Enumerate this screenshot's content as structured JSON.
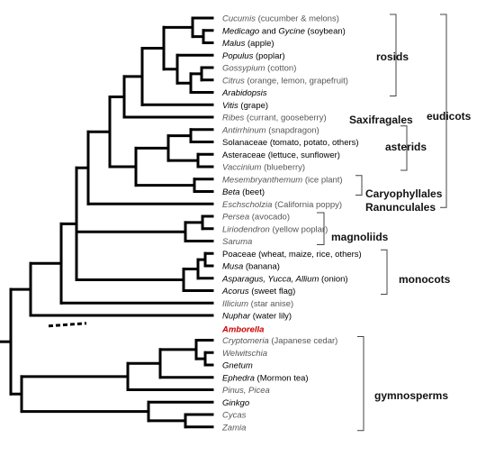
{
  "colors": {
    "tree": "#000000",
    "bracket": "#444444",
    "grey_label": "#555555",
    "black_label": "#000000",
    "highlight": "#cc0000"
  },
  "taxa": [
    {
      "id": "cucumis",
      "style": "grey",
      "parts": [
        {
          "t": "Cucumis",
          "i": true
        },
        {
          "t": " (cucumber & melons)"
        }
      ]
    },
    {
      "id": "medicago",
      "style": "black",
      "parts": [
        {
          "t": "Medicago",
          "i": true
        },
        {
          "t": " and "
        },
        {
          "t": "Gycine",
          "i": true
        },
        {
          "t": " (soybean)"
        }
      ]
    },
    {
      "id": "malus",
      "style": "black",
      "parts": [
        {
          "t": "Malus",
          "i": true
        },
        {
          "t": " (apple)"
        }
      ]
    },
    {
      "id": "populus",
      "style": "black",
      "parts": [
        {
          "t": "Populus",
          "i": true
        },
        {
          "t": " (poplar)"
        }
      ]
    },
    {
      "id": "gossypium",
      "style": "grey",
      "parts": [
        {
          "t": "Gossypium",
          "i": true
        },
        {
          "t": " (cotton)"
        }
      ]
    },
    {
      "id": "citrus",
      "style": "grey",
      "parts": [
        {
          "t": "Citrus",
          "i": true
        },
        {
          "t": " (orange, lemon, grapefruit)"
        }
      ]
    },
    {
      "id": "arabidopsis",
      "style": "black",
      "parts": [
        {
          "t": "Arabidopsis",
          "i": true
        }
      ]
    },
    {
      "id": "vitis",
      "style": "black",
      "parts": [
        {
          "t": "Vitis",
          "i": true
        },
        {
          "t": " (grape)"
        }
      ]
    },
    {
      "id": "ribes",
      "style": "grey",
      "parts": [
        {
          "t": "Ribes",
          "i": true
        },
        {
          "t": " (currant, gooseberry)"
        }
      ]
    },
    {
      "id": "antirrhinum",
      "style": "grey",
      "parts": [
        {
          "t": "Antirrhinum",
          "i": true
        },
        {
          "t": " (snapdragon)"
        }
      ]
    },
    {
      "id": "solanaceae",
      "style": "black",
      "parts": [
        {
          "t": "Solanaceae (tomato, potato, others)"
        }
      ]
    },
    {
      "id": "asteraceae",
      "style": "black",
      "parts": [
        {
          "t": "Asteraceae (lettuce, sunflower)"
        }
      ]
    },
    {
      "id": "vaccinium",
      "style": "grey",
      "parts": [
        {
          "t": "Vaccinium",
          "i": true
        },
        {
          "t": " (blueberry)"
        }
      ]
    },
    {
      "id": "mesembryanthemum",
      "style": "grey",
      "parts": [
        {
          "t": "Mesembryanthemum",
          "i": true
        },
        {
          "t": " (ice plant)"
        }
      ]
    },
    {
      "id": "beta",
      "style": "black",
      "parts": [
        {
          "t": "Beta",
          "i": true
        },
        {
          "t": " (beet)"
        }
      ]
    },
    {
      "id": "eschscholzia",
      "style": "grey",
      "parts": [
        {
          "t": "Eschscholzia",
          "i": true
        },
        {
          "t": " (California poppy)"
        }
      ]
    },
    {
      "id": "persea",
      "style": "grey",
      "parts": [
        {
          "t": "Persea",
          "i": true
        },
        {
          "t": " (avocado)"
        }
      ]
    },
    {
      "id": "liriodendron",
      "style": "grey",
      "parts": [
        {
          "t": "Liriodendron",
          "i": true
        },
        {
          "t": " (yellow poplar)"
        }
      ]
    },
    {
      "id": "saruma",
      "style": "grey",
      "parts": [
        {
          "t": "Saruma",
          "i": true
        }
      ]
    },
    {
      "id": "poaceae",
      "style": "black",
      "parts": [
        {
          "t": "Poaceae (wheat, maize, rice, others)"
        }
      ]
    },
    {
      "id": "musa",
      "style": "black",
      "parts": [
        {
          "t": "Musa",
          "i": true
        },
        {
          "t": " (banana)"
        }
      ]
    },
    {
      "id": "asparagus",
      "style": "black",
      "parts": [
        {
          "t": "Asparagus, Yucca, Allium",
          "i": true
        },
        {
          "t": " (onion)"
        }
      ]
    },
    {
      "id": "acorus",
      "style": "black",
      "parts": [
        {
          "t": "Acorus",
          "i": true
        },
        {
          "t": " (sweet flag)"
        }
      ]
    },
    {
      "id": "illicium",
      "style": "grey",
      "parts": [
        {
          "t": "Illicium",
          "i": true
        },
        {
          "t": " (star anise)"
        }
      ]
    },
    {
      "id": "nuphar",
      "style": "black",
      "parts": [
        {
          "t": "Nuphar",
          "i": true
        },
        {
          "t": " (water lily)"
        }
      ]
    },
    {
      "id": "amborella",
      "style": "red",
      "parts": [
        {
          "t": "Amborella",
          "i": true
        }
      ]
    },
    {
      "id": "cryptomeria",
      "style": "grey",
      "parts": [
        {
          "t": "Cryptomeria",
          "i": true
        },
        {
          "t": " (Japanese cedar)"
        }
      ]
    },
    {
      "id": "welwitschia",
      "style": "grey",
      "parts": [
        {
          "t": "Welwitschia",
          "i": true
        }
      ]
    },
    {
      "id": "gnetum",
      "style": "black",
      "parts": [
        {
          "t": "Gnetum",
          "i": true
        }
      ]
    },
    {
      "id": "ephedra",
      "style": "black",
      "parts": [
        {
          "t": "Ephedra",
          "i": true
        },
        {
          "t": " (Mormon tea)"
        }
      ]
    },
    {
      "id": "pinus",
      "style": "grey",
      "parts": [
        {
          "t": "Pinus, Picea",
          "i": true
        }
      ]
    },
    {
      "id": "ginkgo",
      "style": "black",
      "parts": [
        {
          "t": "Ginkgo",
          "i": true
        }
      ]
    },
    {
      "id": "cycas",
      "style": "grey",
      "parts": [
        {
          "t": "Cycas",
          "i": true
        }
      ]
    },
    {
      "id": "zamia",
      "style": "grey",
      "parts": [
        {
          "t": "Zamia",
          "i": true
        }
      ]
    }
  ],
  "groups": {
    "rosids": "rosids",
    "saxifragales": "Saxifragales",
    "asterids": "asterids",
    "caryophyllales": "Caryophyllales",
    "ranunculales": "Ranunculales",
    "eudicots": "eudicots",
    "magnoliids": "magnoliids",
    "monocots": "monocots",
    "gymnosperms": "gymnosperms"
  }
}
